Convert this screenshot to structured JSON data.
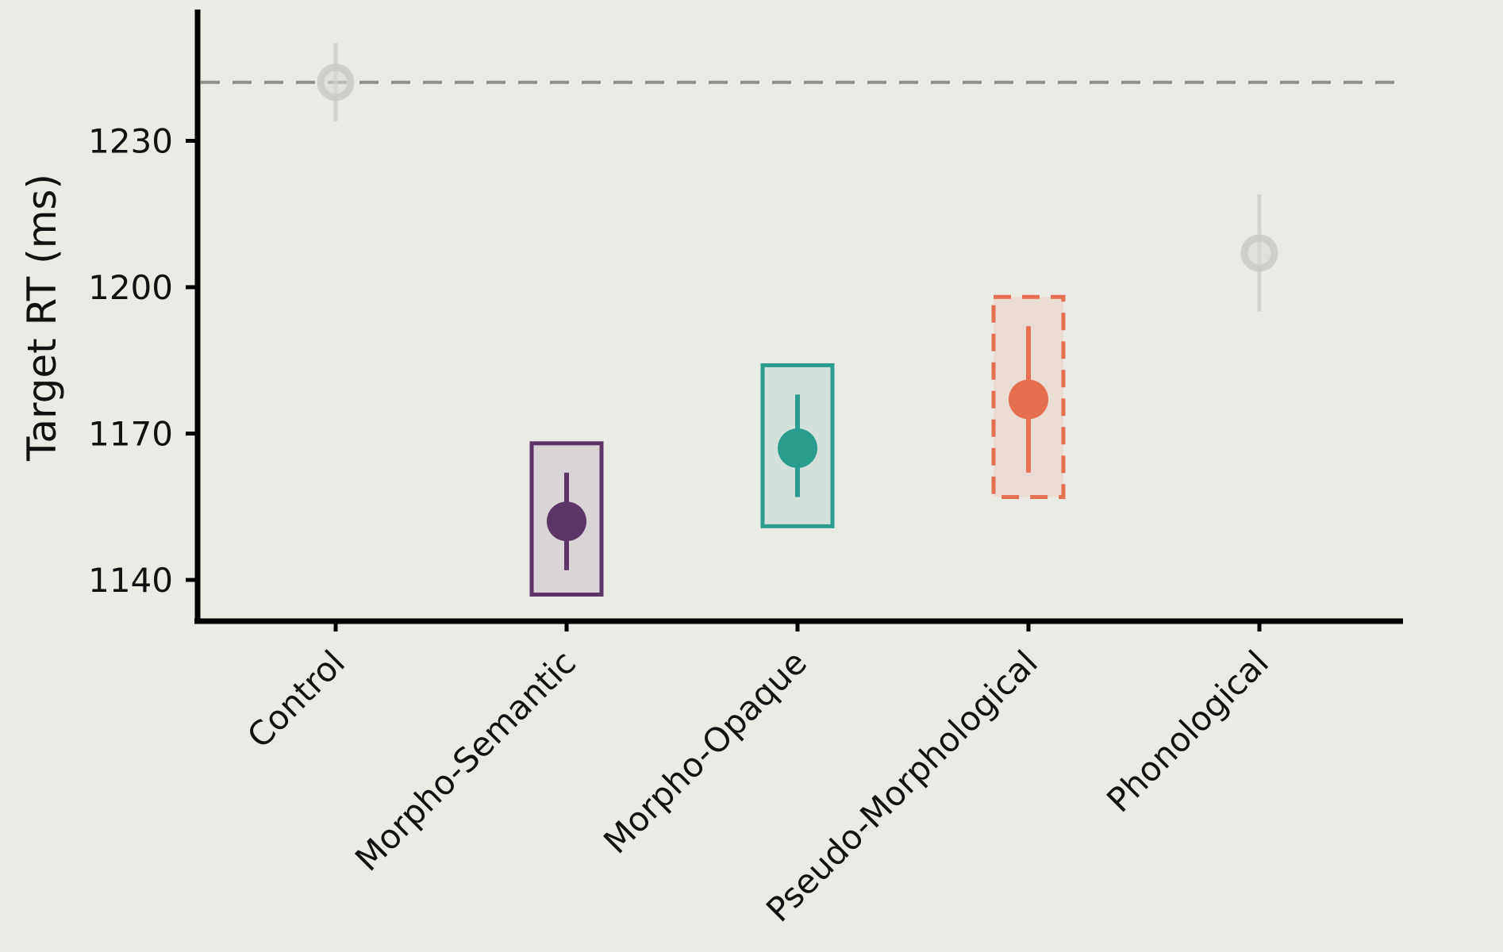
{
  "chart_data": {
    "type": "scatter",
    "title": "",
    "xlabel": "",
    "ylabel": "Target RT (ms)",
    "ylim": [
      1132,
      1258
    ],
    "yticks": [
      1140,
      1170,
      1200,
      1230
    ],
    "categories": [
      "Control",
      "Morpho-Semantic",
      "Morpho-Opaque",
      "Pseudo-Morphological",
      "Phonological"
    ],
    "reference_line": {
      "value": 1242,
      "style": "dashed",
      "color": "#8f8f8b"
    },
    "points": [
      {
        "category": "Control",
        "value": 1242,
        "err_low": 1234,
        "err_high": 1250,
        "box_low": null,
        "box_high": null,
        "color": "#c9c9c3",
        "box_style": "none",
        "emphasis": false
      },
      {
        "category": "Morpho-Semantic",
        "value": 1152,
        "err_low": 1142,
        "err_high": 1162,
        "box_low": 1137,
        "box_high": 1168,
        "color": "#5b3566",
        "box_style": "solid",
        "emphasis": true
      },
      {
        "category": "Morpho-Opaque",
        "value": 1167,
        "err_low": 1157,
        "err_high": 1178,
        "box_low": 1151,
        "box_high": 1184,
        "color": "#2a9d8f",
        "box_style": "solid",
        "emphasis": true
      },
      {
        "category": "Pseudo-Morphological",
        "value": 1177,
        "err_low": 1162,
        "err_high": 1192,
        "box_low": 1157,
        "box_high": 1198,
        "color": "#e76f51",
        "box_style": "dashed",
        "emphasis": true
      },
      {
        "category": "Phonological",
        "value": 1207,
        "err_low": 1195,
        "err_high": 1219,
        "box_low": null,
        "box_high": null,
        "color": "#c9c9c3",
        "box_style": "none",
        "emphasis": false
      }
    ],
    "grid": false,
    "legend": "none"
  }
}
